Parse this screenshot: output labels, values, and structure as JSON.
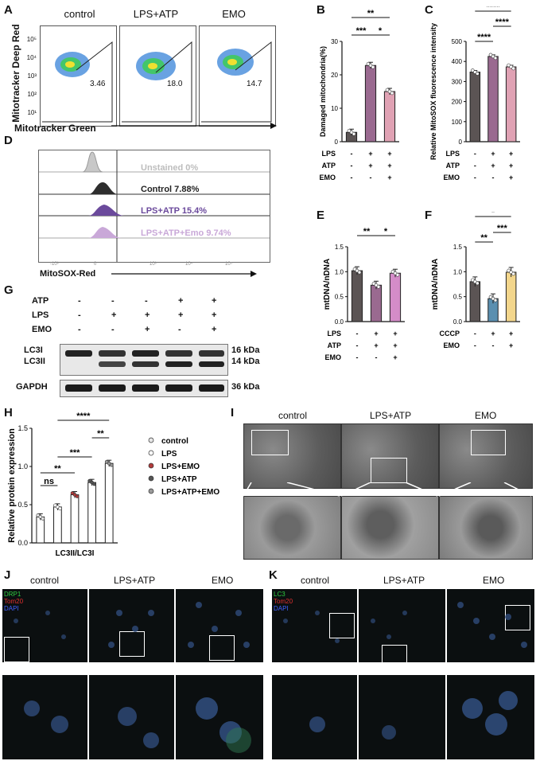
{
  "panels": {
    "A": "A",
    "B": "B",
    "C": "C",
    "D": "D",
    "E": "E",
    "F": "F",
    "G": "G",
    "H": "H",
    "I": "I",
    "J": "J",
    "K": "K"
  },
  "panelA": {
    "groups": [
      "control",
      "LPS+ATP",
      "EMO"
    ],
    "gate_values": [
      "3.46",
      "18.0",
      "14.7"
    ],
    "ylabel": "Mitotracker Deep Red",
    "xlabel": "Mitotracker Green",
    "yticks": [
      "10⁵",
      "10⁴",
      "10³",
      "10²",
      "10¹"
    ]
  },
  "panelD": {
    "rows": [
      "Unstained 0%",
      "Control 7.88%",
      "LPS+ATP 15.4%",
      "LPS+ATP+Emo 9.74%"
    ],
    "xlabel": "MitoSOX-Red",
    "xticks": [
      "-10³",
      "0",
      "10³",
      "10⁴",
      "10⁵"
    ]
  },
  "panelG": {
    "treat_rows": [
      {
        "label": "ATP",
        "marks": [
          "-",
          "-",
          "-",
          "+",
          "+"
        ]
      },
      {
        "label": "LPS",
        "marks": [
          "-",
          "+",
          "+",
          "+",
          "+"
        ]
      },
      {
        "label": "EMO",
        "marks": [
          "-",
          "-",
          "+",
          "-",
          "+"
        ]
      }
    ],
    "blots": [
      {
        "name": "LC3I / LC3II",
        "labels": [
          "LC3I",
          "LC3II"
        ],
        "sizes": [
          "16 kDa",
          "14 kDa"
        ]
      },
      {
        "name": "GAPDH",
        "labels": [
          "GAPDH"
        ],
        "sizes": [
          "36 kDa"
        ]
      }
    ]
  },
  "panelI": {
    "groups": [
      "control",
      "LPS+ATP",
      "EMO"
    ]
  },
  "panelJ": {
    "groups": [
      "control",
      "LPS+ATP",
      "EMO"
    ],
    "stains": [
      "DRP1",
      "Tom20",
      "DAPI"
    ],
    "stain_colors": [
      "#2ecc40",
      "#e03030",
      "#4060ff"
    ]
  },
  "panelK": {
    "groups": [
      "control",
      "LPS+ATP",
      "EMO"
    ],
    "stains": [
      "LC3",
      "Tom20",
      "DAPI"
    ],
    "stain_colors": [
      "#2ecc40",
      "#e03030",
      "#4060ff"
    ]
  },
  "chart_data": [
    {
      "id": "B",
      "type": "bar",
      "ylabel": "Damaged mitochondria(%)",
      "ylim": [
        0,
        30
      ],
      "yticks": [
        0,
        10,
        20,
        30
      ],
      "values": [
        2.8,
        22.8,
        15.0
      ],
      "colors": [
        "#5b5454",
        "#9a6a90",
        "#e0a2b4"
      ],
      "treatments": [
        {
          "label": "LPS",
          "marks": [
            "-",
            "+",
            "+"
          ]
        },
        {
          "label": "ATP",
          "marks": [
            "-",
            "+",
            "+"
          ]
        },
        {
          "label": "EMO",
          "marks": [
            "-",
            "-",
            "+"
          ]
        }
      ],
      "sig": [
        {
          "from": 0,
          "to": 1,
          "text": "***"
        },
        {
          "from": 1,
          "to": 2,
          "text": "*"
        },
        {
          "from": 0,
          "to": 2,
          "text": "**"
        }
      ]
    },
    {
      "id": "C",
      "type": "bar",
      "ylabel": "Relative MitoSOX fluorescence intensity",
      "ylim": [
        0,
        500
      ],
      "yticks": [
        0,
        100,
        200,
        300,
        400,
        500
      ],
      "values": [
        347,
        425,
        373
      ],
      "colors": [
        "#5b5454",
        "#9a6a90",
        "#e0a2b4"
      ],
      "treatments": [
        {
          "label": "LPS",
          "marks": [
            "-",
            "+",
            "+"
          ]
        },
        {
          "label": "ATP",
          "marks": [
            "-",
            "+",
            "+"
          ]
        },
        {
          "label": "EMO",
          "marks": [
            "-",
            "-",
            "+"
          ]
        }
      ],
      "sig": [
        {
          "from": 0,
          "to": 1,
          "text": "****"
        },
        {
          "from": 1,
          "to": 2,
          "text": "****"
        },
        {
          "from": 0,
          "to": 2,
          "text": "****"
        }
      ]
    },
    {
      "id": "E",
      "type": "bar",
      "ylabel": "mtDNA/nDNA",
      "ylim": [
        0,
        1.5
      ],
      "yticks": [
        "0.0",
        "0.5",
        "1.0",
        "1.5"
      ],
      "values": [
        1.02,
        0.73,
        0.97
      ],
      "colors": [
        "#5b5454",
        "#9a6a90",
        "#d48cc8"
      ],
      "treatments": [
        {
          "label": "LPS",
          "marks": [
            "-",
            "+",
            "+"
          ]
        },
        {
          "label": "ATP",
          "marks": [
            "-",
            "+",
            "+"
          ]
        },
        {
          "label": "EMO",
          "marks": [
            "-",
            "-",
            "+"
          ]
        }
      ],
      "sig": [
        {
          "from": 0,
          "to": 1,
          "text": "**"
        },
        {
          "from": 1,
          "to": 2,
          "text": "*"
        }
      ]
    },
    {
      "id": "F",
      "type": "bar",
      "ylabel": "mtDNA/nDNA",
      "ylim": [
        0,
        1.5
      ],
      "yticks": [
        "0.0",
        "0.5",
        "1.0",
        "1.5"
      ],
      "values": [
        0.8,
        0.46,
        0.99
      ],
      "colors": [
        "#5b5454",
        "#5a8fb0",
        "#f3d68c"
      ],
      "treatments": [
        {
          "label": "CCCP",
          "marks": [
            "-",
            "+",
            "+"
          ]
        },
        {
          "label": "EMO",
          "marks": [
            "-",
            "-",
            "+"
          ]
        }
      ],
      "sig": [
        {
          "from": 0,
          "to": 1,
          "text": "**"
        },
        {
          "from": 1,
          "to": 2,
          "text": "***"
        },
        {
          "from": 0,
          "to": 2,
          "text": "*"
        }
      ]
    },
    {
      "id": "H",
      "type": "bar",
      "ylabel": "Relative protein expression",
      "xlabel": "LC3II/LC3I",
      "ylim": [
        0,
        1.5
      ],
      "yticks": [
        "0.0",
        "0.5",
        "1.0",
        "1.5"
      ],
      "categories": [
        "control",
        "LPS",
        "LPS+EMO",
        "LPS+ATP",
        "LPS+ATP+EMO"
      ],
      "values": [
        0.34,
        0.47,
        0.63,
        0.79,
        1.04
      ],
      "colors": [
        "#ffffff",
        "#ffffff",
        "#ffffff",
        "#ffffff",
        "#ffffff"
      ],
      "dot_colors": [
        "#e6e6e6",
        "#ffffff",
        "#b23b3b",
        "#555555",
        "#9a9a9a"
      ],
      "sig": [
        {
          "from": 0,
          "to": 1,
          "text": "ns"
        },
        {
          "from": 0,
          "to": 2,
          "text": "**"
        },
        {
          "from": 1,
          "to": 3,
          "text": "***"
        },
        {
          "from": 3,
          "to": 4,
          "text": "**"
        },
        {
          "from": 1,
          "to": 4,
          "text": "****"
        }
      ]
    }
  ]
}
